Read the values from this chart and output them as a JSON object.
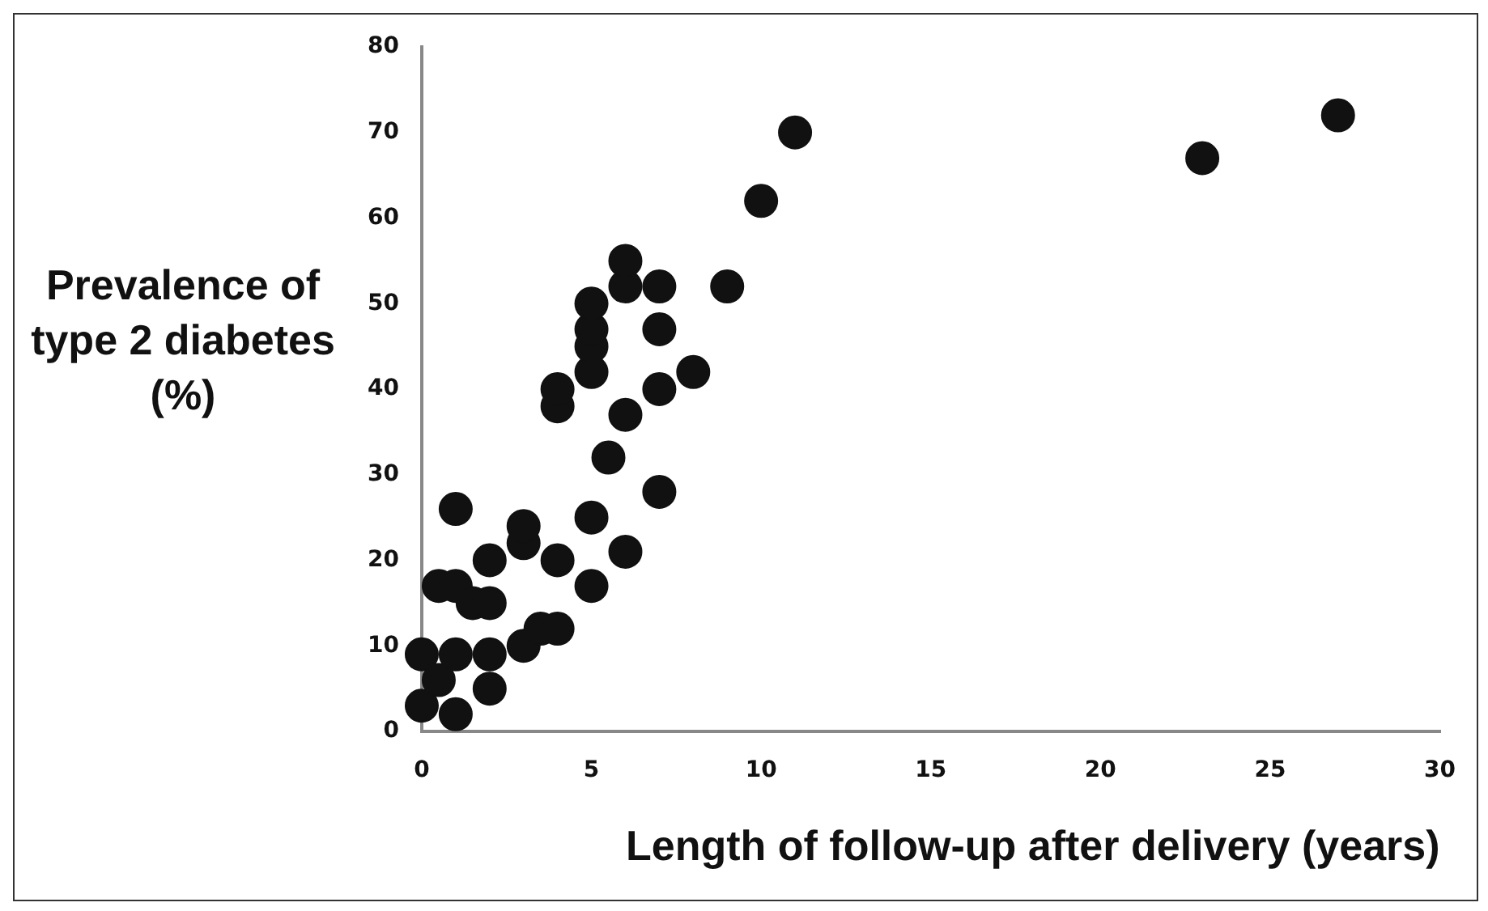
{
  "chart_data": {
    "type": "scatter",
    "xlabel": "Length of follow-up after delivery (years)",
    "ylabel": "Prevalence of type 2 diabetes (%)",
    "x": [
      0,
      0,
      0.5,
      1,
      1,
      2,
      2,
      1,
      0.5,
      1,
      1.5,
      2,
      2,
      3,
      3.5,
      4,
      3,
      3,
      4,
      5,
      5,
      5.5,
      6,
      7,
      6,
      7,
      8,
      4,
      4,
      5,
      5,
      5,
      5,
      6,
      6,
      7,
      7,
      9,
      10,
      11,
      23,
      27
    ],
    "series": [
      {
        "color": "#111111",
        "values": [
          9,
          3,
          6,
          9,
          2,
          9,
          5,
          26,
          17,
          17,
          15,
          15,
          20,
          10,
          12,
          12,
          22,
          24,
          20,
          17,
          25,
          32,
          21,
          28,
          37,
          40,
          42,
          38,
          40,
          42,
          45,
          47,
          50,
          52,
          55,
          52,
          47,
          52,
          62,
          70,
          67,
          72
        ]
      }
    ],
    "xlim": [
      0,
      30
    ],
    "xticks": [
      0,
      5,
      10,
      15,
      20,
      25,
      30
    ],
    "ylim": [
      0,
      80
    ],
    "yticks": [
      0,
      10,
      20,
      30,
      40,
      50,
      60,
      70,
      80
    ],
    "marker": "circle",
    "grid": false,
    "legend": false
  }
}
